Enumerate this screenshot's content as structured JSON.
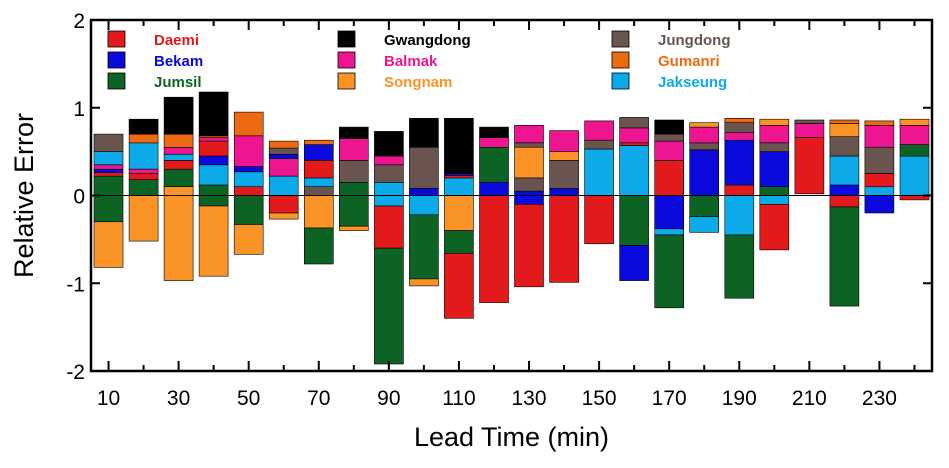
{
  "chart_data": {
    "type": "bar",
    "subtype": "stacked-bar",
    "title": "",
    "xlabel": "Lead Time (min)",
    "ylabel": "Relative Error",
    "xlim": [
      5,
      245
    ],
    "ylim": [
      -2,
      2
    ],
    "x_ticks": [
      10,
      30,
      50,
      70,
      90,
      110,
      130,
      150,
      170,
      190,
      210,
      230
    ],
    "y_ticks": [
      2,
      1,
      0,
      -1,
      -2
    ],
    "legend_position": "top (inside plot, 3 columns)",
    "series": [
      {
        "name": "Daemi",
        "color": "#e31a1c"
      },
      {
        "name": "Bekam",
        "color": "#0a0adc"
      },
      {
        "name": "Jumsil",
        "color": "#0c6324"
      },
      {
        "name": "Gwangdong",
        "color": "#000000"
      },
      {
        "name": "Balmak",
        "color": "#ee1590"
      },
      {
        "name": "Songnam",
        "color": "#fb9426"
      },
      {
        "name": "Jungdong",
        "color": "#6a5450"
      },
      {
        "name": "Gumanri",
        "color": "#ee6a12"
      },
      {
        "name": "Jakseung",
        "color": "#0daae9"
      }
    ],
    "bars": [
      {
        "x": 10,
        "segments": [
          [
            "Jumsil",
            0,
            0.22
          ],
          [
            "Daemi",
            0.22,
            0.26
          ],
          [
            "Bekam",
            0.26,
            0.3
          ],
          [
            "Balmak",
            0.3,
            0.35
          ],
          [
            "Jakseung",
            0.35,
            0.5
          ],
          [
            "Jungdong",
            0.5,
            0.7
          ],
          [
            "Jumsil",
            0,
            -0.3
          ],
          [
            "Songnam",
            -0.3,
            -0.82
          ]
        ]
      },
      {
        "x": 20,
        "segments": [
          [
            "Jumsil",
            0,
            0.18
          ],
          [
            "Daemi",
            0.18,
            0.25
          ],
          [
            "Balmak",
            0.25,
            0.3
          ],
          [
            "Jakseung",
            0.3,
            0.6
          ],
          [
            "Gumanri",
            0.6,
            0.7
          ],
          [
            "Gwangdong",
            0.7,
            0.87
          ],
          [
            "Songnam",
            0,
            -0.52
          ]
        ]
      },
      {
        "x": 30,
        "segments": [
          [
            "Jumsil",
            0,
            0.3
          ],
          [
            "Daemi",
            0.3,
            0.4
          ],
          [
            "Jakseung",
            0.4,
            0.47
          ],
          [
            "Balmak",
            0.47,
            0.55
          ],
          [
            "Gumanri",
            0.55,
            0.7
          ],
          [
            "Gwangdong",
            0.7,
            1.12
          ],
          [
            "Songnam",
            0.1,
            -0.97
          ]
        ]
      },
      {
        "x": 40,
        "segments": [
          [
            "Jumsil",
            0,
            0.12
          ],
          [
            "Jakseung",
            0.12,
            0.35
          ],
          [
            "Bekam",
            0.35,
            0.45
          ],
          [
            "Daemi",
            0.45,
            0.62
          ],
          [
            "Balmak",
            0.62,
            0.66
          ],
          [
            "Gumanri",
            0.66,
            0.68
          ],
          [
            "Gwangdong",
            0.68,
            1.18
          ],
          [
            "Jumsil",
            0,
            -0.12
          ],
          [
            "Songnam",
            -0.12,
            -0.92
          ]
        ]
      },
      {
        "x": 50,
        "segments": [
          [
            "Daemi",
            0,
            0.1
          ],
          [
            "Jakseung",
            0.1,
            0.27
          ],
          [
            "Bekam",
            0.27,
            0.33
          ],
          [
            "Balmak",
            0.33,
            0.68
          ],
          [
            "Gumanri",
            0.68,
            0.95
          ],
          [
            "Jumsil",
            0,
            -0.33
          ],
          [
            "Songnam",
            -0.33,
            -0.67
          ]
        ]
      },
      {
        "x": 60,
        "segments": [
          [
            "Jakseung",
            0,
            0.22
          ],
          [
            "Balmak",
            0.22,
            0.42
          ],
          [
            "Bekam",
            0.42,
            0.47
          ],
          [
            "Jungdong",
            0.47,
            0.54
          ],
          [
            "Gumanri",
            0.54,
            0.62
          ],
          [
            "Daemi",
            0,
            -0.2
          ],
          [
            "Songnam",
            -0.2,
            -0.27
          ]
        ]
      },
      {
        "x": 70,
        "segments": [
          [
            "Jungdong",
            0,
            0.1
          ],
          [
            "Jakseung",
            0.1,
            0.2
          ],
          [
            "Daemi",
            0.2,
            0.4
          ],
          [
            "Bekam",
            0.4,
            0.58
          ],
          [
            "Gumanri",
            0.58,
            0.63
          ],
          [
            "Songnam",
            0,
            -0.37
          ],
          [
            "Jumsil",
            -0.37,
            -0.78
          ]
        ]
      },
      {
        "x": 80,
        "segments": [
          [
            "Jumsil",
            0,
            0.15
          ],
          [
            "Jungdong",
            0.15,
            0.4
          ],
          [
            "Balmak",
            0.4,
            0.65
          ],
          [
            "Gwangdong",
            0.65,
            0.78
          ],
          [
            "Jumsil",
            0,
            -0.35
          ],
          [
            "Songnam",
            -0.35,
            -0.4
          ]
        ]
      },
      {
        "x": 90,
        "segments": [
          [
            "Jakseung",
            0,
            0.15
          ],
          [
            "Jungdong",
            0.15,
            0.35
          ],
          [
            "Balmak",
            0.35,
            0.45
          ],
          [
            "Gwangdong",
            0.45,
            0.73
          ],
          [
            "Jakseung",
            0,
            -0.12
          ],
          [
            "Daemi",
            -0.12,
            -0.6
          ],
          [
            "Jumsil",
            -0.6,
            -1.92
          ]
        ]
      },
      {
        "x": 100,
        "segments": [
          [
            "Bekam",
            0,
            0.08
          ],
          [
            "Jungdong",
            0.08,
            0.55
          ],
          [
            "Gwangdong",
            0.55,
            0.88
          ],
          [
            "Jakseung",
            0,
            -0.22
          ],
          [
            "Jumsil",
            -0.22,
            -0.95
          ],
          [
            "Songnam",
            -0.95,
            -1.03
          ]
        ]
      },
      {
        "x": 110,
        "segments": [
          [
            "Jakseung",
            0,
            0.2
          ],
          [
            "Daemi",
            0.2,
            0.23
          ],
          [
            "Bekam",
            0.23,
            0.25
          ],
          [
            "Gwangdong",
            0.25,
            0.88
          ],
          [
            "Songnam",
            0,
            -0.4
          ],
          [
            "Jumsil",
            -0.4,
            -0.66
          ],
          [
            "Daemi",
            -0.66,
            -1.4
          ]
        ]
      },
      {
        "x": 120,
        "segments": [
          [
            "Bekam",
            0,
            0.15
          ],
          [
            "Jumsil",
            0.15,
            0.55
          ],
          [
            "Balmak",
            0.55,
            0.66
          ],
          [
            "Gwangdong",
            0.66,
            0.78
          ],
          [
            "Daemi",
            0,
            -1.22
          ]
        ]
      },
      {
        "x": 130,
        "segments": [
          [
            "Bekam",
            0,
            0.05
          ],
          [
            "Jungdong",
            0.05,
            0.2
          ],
          [
            "Songnam",
            0.2,
            0.55
          ],
          [
            "Jungdong",
            0.55,
            0.6
          ],
          [
            "Balmak",
            0.6,
            0.8
          ],
          [
            "Bekam",
            0,
            -0.1
          ],
          [
            "Daemi",
            -0.1,
            -1.04
          ]
        ]
      },
      {
        "x": 140,
        "segments": [
          [
            "Bekam",
            0,
            0.08
          ],
          [
            "Jungdong",
            0.08,
            0.4
          ],
          [
            "Songnam",
            0.4,
            0.5
          ],
          [
            "Balmak",
            0.5,
            0.74
          ],
          [
            "Daemi",
            0,
            -0.99
          ]
        ]
      },
      {
        "x": 150,
        "segments": [
          [
            "Jakseung",
            0,
            0.53
          ],
          [
            "Jungdong",
            0.53,
            0.63
          ],
          [
            "Balmak",
            0.63,
            0.85
          ],
          [
            "Daemi",
            0,
            -0.55
          ]
        ]
      },
      {
        "x": 160,
        "segments": [
          [
            "Jakseung",
            0,
            0.57
          ],
          [
            "Daemi",
            0.57,
            0.6
          ],
          [
            "Balmak",
            0.6,
            0.77
          ],
          [
            "Jungdong",
            0.77,
            0.89
          ],
          [
            "Jumsil",
            0,
            -0.57
          ],
          [
            "Bekam",
            -0.57,
            -0.97
          ]
        ]
      },
      {
        "x": 170,
        "segments": [
          [
            "Daemi",
            0,
            0.4
          ],
          [
            "Balmak",
            0.4,
            0.62
          ],
          [
            "Jungdong",
            0.62,
            0.7
          ],
          [
            "Gwangdong",
            0.7,
            0.86
          ],
          [
            "Bekam",
            0,
            -0.38
          ],
          [
            "Jakseung",
            -0.38,
            -0.45
          ],
          [
            "Jumsil",
            -0.45,
            -1.28
          ]
        ]
      },
      {
        "x": 180,
        "segments": [
          [
            "Bekam",
            0,
            0.52
          ],
          [
            "Jungdong",
            0.52,
            0.6
          ],
          [
            "Balmak",
            0.6,
            0.78
          ],
          [
            "Songnam",
            0.78,
            0.83
          ],
          [
            "Jumsil",
            0,
            -0.24
          ],
          [
            "Jakseung",
            -0.24,
            -0.42
          ]
        ]
      },
      {
        "x": 190,
        "segments": [
          [
            "Daemi",
            0,
            0.12
          ],
          [
            "Bekam",
            0.12,
            0.63
          ],
          [
            "Balmak",
            0.63,
            0.72
          ],
          [
            "Jungdong",
            0.72,
            0.83
          ],
          [
            "Gumanri",
            0.83,
            0.88
          ],
          [
            "Jakseung",
            0,
            -0.45
          ],
          [
            "Jumsil",
            -0.45,
            -1.17
          ]
        ]
      },
      {
        "x": 200,
        "segments": [
          [
            "Jumsil",
            0,
            0.1
          ],
          [
            "Bekam",
            0.1,
            0.5
          ],
          [
            "Jungdong",
            0.5,
            0.6
          ],
          [
            "Balmak",
            0.6,
            0.8
          ],
          [
            "Songnam",
            0.8,
            0.87
          ],
          [
            "Jakseung",
            0,
            -0.1
          ],
          [
            "Daemi",
            -0.1,
            -0.62
          ]
        ]
      },
      {
        "x": 210,
        "segments": [
          [
            "Daemi",
            0.02,
            0.66
          ],
          [
            "Balmak",
            0.66,
            0.82
          ],
          [
            "Jungdong",
            0.82,
            0.86
          ]
        ]
      },
      {
        "x": 220,
        "segments": [
          [
            "Bekam",
            0,
            0.12
          ],
          [
            "Jakseung",
            0.12,
            0.45
          ],
          [
            "Jungdong",
            0.45,
            0.67
          ],
          [
            "Songnam",
            0.67,
            0.82
          ],
          [
            "Gumanri",
            0.82,
            0.86
          ],
          [
            "Daemi",
            0,
            -0.13
          ],
          [
            "Jumsil",
            -0.13,
            -1.26
          ]
        ]
      },
      {
        "x": 230,
        "segments": [
          [
            "Jakseung",
            0,
            0.1
          ],
          [
            "Daemi",
            0.1,
            0.25
          ],
          [
            "Jungdong",
            0.25,
            0.55
          ],
          [
            "Balmak",
            0.55,
            0.8
          ],
          [
            "Gumanri",
            0.8,
            0.85
          ],
          [
            "Bekam",
            0,
            -0.2
          ]
        ]
      },
      {
        "x": 240,
        "segments": [
          [
            "Jakseung",
            0,
            0.45
          ],
          [
            "Jumsil",
            0.45,
            0.58
          ],
          [
            "Balmak",
            0.58,
            0.8
          ],
          [
            "Songnam",
            0.8,
            0.87
          ],
          [
            "Daemi",
            0,
            -0.05
          ]
        ]
      }
    ]
  }
}
